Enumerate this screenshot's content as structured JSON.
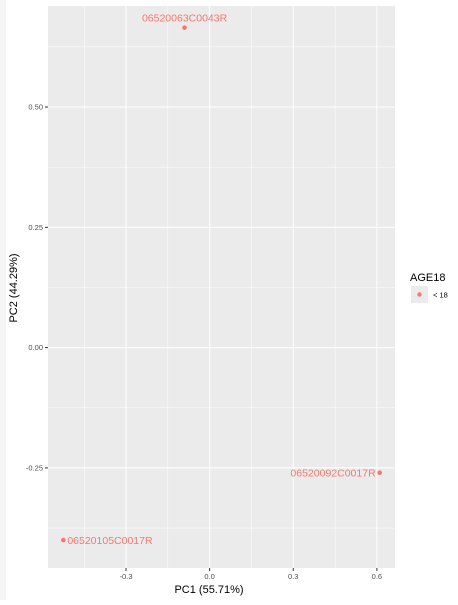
{
  "chart_data": {
    "type": "scatter",
    "xlabel": "PC1 (55.71%)",
    "ylabel": "PC2 (44.29%)",
    "xlim": [
      -0.58,
      0.665
    ],
    "ylim": [
      -0.458,
      0.71
    ],
    "x_ticks": [
      -0.3,
      0.0,
      0.3,
      0.6
    ],
    "x_tick_labels": [
      "-0.3",
      "0.0",
      "0.3",
      "0.6"
    ],
    "y_ticks": [
      -0.25,
      0.0,
      0.25,
      0.5
    ],
    "y_tick_labels": [
      "-0.25",
      "0.00",
      "0.25",
      "0.50"
    ],
    "grid": true,
    "legend": {
      "title": "AGE18",
      "placement": "right",
      "entries": [
        {
          "label": "< 18",
          "color": "#F8766D"
        }
      ]
    },
    "series": [
      {
        "color": "#F8766D",
        "points": [
          {
            "x": -0.09,
            "y": 0.665,
            "label": "06520063C0043R"
          },
          {
            "x": 0.61,
            "y": -0.26,
            "label": "06520092C0017R"
          },
          {
            "x": -0.525,
            "y": -0.4,
            "label": "06520105C0017R"
          }
        ]
      }
    ]
  },
  "colors": {
    "panel_background": "#EBEBEB",
    "grid_major": "#FFFFFF",
    "point": "#F8766D",
    "axis_text": "#4D4D4D",
    "axis_title": "#000000"
  }
}
